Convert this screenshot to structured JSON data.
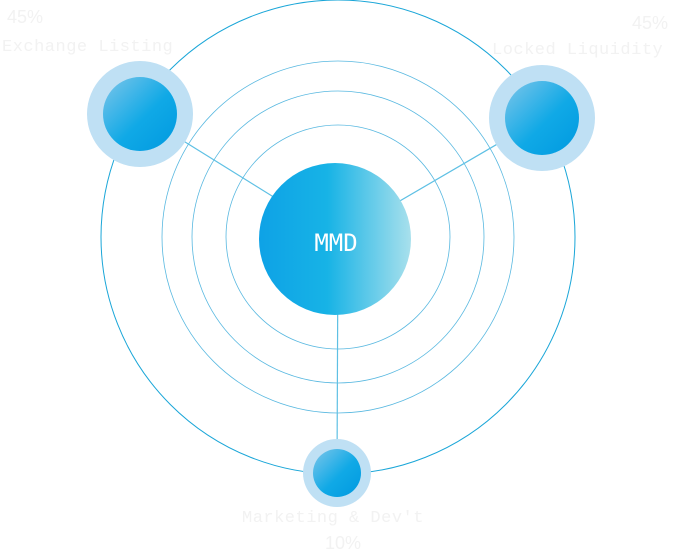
{
  "center": {
    "label": "MMD"
  },
  "segments": [
    {
      "label": "Exchange Listing",
      "percent": "45%"
    },
    {
      "label": "Locked Liquidity",
      "percent": "45%"
    },
    {
      "label": "Marketing & Dev't",
      "percent": "10%"
    }
  ],
  "colors": {
    "line": "#1aa6d8",
    "ring": "#58b8e0",
    "halo": "#bfe0f4",
    "node_gradient": [
      "#7ec6ea",
      "#0099e0"
    ],
    "center_gradient": [
      "#0ea2e6",
      "#a8e0ec"
    ],
    "label_text": "#f2f2f2"
  }
}
